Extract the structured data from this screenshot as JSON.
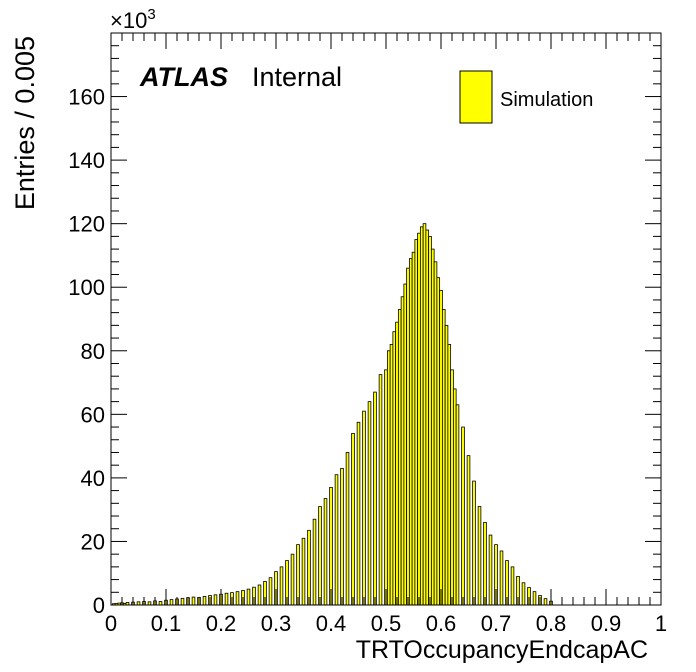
{
  "chart_data": {
    "type": "bar",
    "xlabel": "TRTOccupancyEndcapAC",
    "ylabel": "Entries / 0.005",
    "y_multiplier": "×10",
    "y_multiplier_exponent": "3",
    "xlim": [
      0,
      1
    ],
    "ylim": [
      0,
      180
    ],
    "x_ticks": [
      0,
      0.1,
      0.2,
      0.3,
      0.4,
      0.5,
      0.6,
      0.7,
      0.8,
      0.9,
      1
    ],
    "x_tick_labels": [
      "0",
      "0.1",
      "0.2",
      "0.3",
      "0.4",
      "0.5",
      "0.6",
      "0.7",
      "0.8",
      "0.9",
      "1"
    ],
    "y_ticks": [
      0,
      20,
      40,
      60,
      80,
      100,
      120,
      140,
      160
    ],
    "y_tick_labels": [
      "0",
      "20",
      "40",
      "60",
      "80",
      "100",
      "120",
      "140",
      "160"
    ],
    "grid": false,
    "legend_position": "top-right",
    "bin_width": 0.005,
    "bar_color": "#ffff00",
    "bar_edge_color": "#000000",
    "series": [
      {
        "name": "Simulation",
        "x": [
          0.005,
          0.01,
          0.015,
          0.02,
          0.025,
          0.03,
          0.04,
          0.05,
          0.06,
          0.07,
          0.08,
          0.09,
          0.1,
          0.11,
          0.12,
          0.13,
          0.14,
          0.15,
          0.16,
          0.17,
          0.18,
          0.19,
          0.2,
          0.21,
          0.22,
          0.23,
          0.24,
          0.25,
          0.26,
          0.27,
          0.28,
          0.29,
          0.3,
          0.31,
          0.32,
          0.33,
          0.34,
          0.35,
          0.36,
          0.37,
          0.38,
          0.39,
          0.4,
          0.41,
          0.42,
          0.43,
          0.44,
          0.45,
          0.46,
          0.47,
          0.48,
          0.49,
          0.5,
          0.505,
          0.51,
          0.515,
          0.52,
          0.525,
          0.53,
          0.535,
          0.54,
          0.545,
          0.55,
          0.555,
          0.56,
          0.565,
          0.57,
          0.575,
          0.58,
          0.585,
          0.59,
          0.595,
          0.6,
          0.605,
          0.61,
          0.615,
          0.62,
          0.625,
          0.63,
          0.64,
          0.65,
          0.66,
          0.67,
          0.68,
          0.69,
          0.7,
          0.71,
          0.72,
          0.73,
          0.74,
          0.75,
          0.76,
          0.77,
          0.78,
          0.79,
          0.8
        ],
        "values": [
          0.4,
          0.5,
          0.6,
          0.7,
          0.5,
          0.8,
          0.9,
          1.0,
          1.1,
          1.0,
          1.3,
          1.1,
          1.5,
          1.7,
          1.9,
          2.1,
          2.3,
          2.5,
          2.4,
          2.7,
          3.0,
          3.2,
          3.4,
          3.7,
          3.9,
          4.2,
          4.6,
          5.0,
          5.6,
          6.3,
          7.4,
          8.6,
          10.5,
          12.0,
          14.0,
          16.0,
          19.0,
          21.0,
          23.5,
          27.0,
          31.0,
          33.5,
          37.0,
          41.0,
          43.0,
          48.0,
          54.0,
          57.5,
          61.0,
          64.0,
          67.0,
          72.5,
          74.0,
          80.0,
          82.0,
          86.0,
          89.0,
          93.0,
          97.0,
          101.0,
          106.0,
          109.0,
          111.0,
          115.0,
          117.0,
          119.0,
          120.0,
          118.0,
          116.0,
          112.0,
          108.0,
          103.0,
          99.0,
          93.0,
          88.0,
          82.0,
          74.0,
          68.0,
          63.0,
          56.0,
          47.0,
          39.0,
          31.0,
          26.0,
          22.0,
          19.0,
          17.0,
          14.0,
          12.0,
          9.0,
          7.0,
          5.5,
          4.2,
          3.0,
          2.0,
          1.2
        ]
      }
    ]
  },
  "labels": {
    "atlas": "ATLAS",
    "internal": "Internal"
  }
}
